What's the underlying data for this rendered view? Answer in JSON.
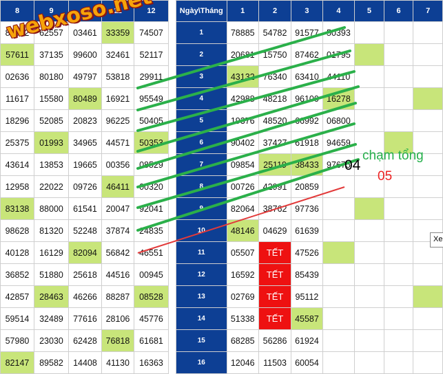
{
  "left_table": {
    "headers": [
      "8",
      "9",
      "10",
      "11",
      "12"
    ],
    "rows": [
      [
        {
          "v": "86012"
        },
        {
          "v": "62557"
        },
        {
          "v": "03461"
        },
        {
          "v": "33359",
          "hl": true
        },
        {
          "v": "74507"
        }
      ],
      [
        {
          "v": "57611",
          "hl": true
        },
        {
          "v": "37135"
        },
        {
          "v": "99600"
        },
        {
          "v": "32461"
        },
        {
          "v": "52117"
        }
      ],
      [
        {
          "v": "02636"
        },
        {
          "v": "80180"
        },
        {
          "v": "49797"
        },
        {
          "v": "53818"
        },
        {
          "v": "29911"
        }
      ],
      [
        {
          "v": "11617"
        },
        {
          "v": "15580"
        },
        {
          "v": "80489",
          "hl": true
        },
        {
          "v": "16921"
        },
        {
          "v": "95549"
        }
      ],
      [
        {
          "v": "18296"
        },
        {
          "v": "52085"
        },
        {
          "v": "20823"
        },
        {
          "v": "96225"
        },
        {
          "v": "50405"
        }
      ],
      [
        {
          "v": "25375"
        },
        {
          "v": "01993",
          "hl": true
        },
        {
          "v": "34965"
        },
        {
          "v": "44571"
        },
        {
          "v": "50353",
          "hl": true
        }
      ],
      [
        {
          "v": "43614"
        },
        {
          "v": "13853"
        },
        {
          "v": "19665"
        },
        {
          "v": "00356"
        },
        {
          "v": "08529"
        }
      ],
      [
        {
          "v": "12958"
        },
        {
          "v": "22022"
        },
        {
          "v": "09726"
        },
        {
          "v": "46411",
          "hl": true
        },
        {
          "v": "00320"
        }
      ],
      [
        {
          "v": "83138",
          "hl": true
        },
        {
          "v": "88000"
        },
        {
          "v": "61541"
        },
        {
          "v": "20047"
        },
        {
          "v": "92041"
        }
      ],
      [
        {
          "v": "98628"
        },
        {
          "v": "81320"
        },
        {
          "v": "52248"
        },
        {
          "v": "37874"
        },
        {
          "v": "24835"
        }
      ],
      [
        {
          "v": "40128"
        },
        {
          "v": "16129"
        },
        {
          "v": "82094",
          "hl": true
        },
        {
          "v": "56842"
        },
        {
          "v": "46551"
        }
      ],
      [
        {
          "v": "36852"
        },
        {
          "v": "51880"
        },
        {
          "v": "25618"
        },
        {
          "v": "44516"
        },
        {
          "v": "00945"
        }
      ],
      [
        {
          "v": "42857"
        },
        {
          "v": "28463",
          "hl": true
        },
        {
          "v": "46266"
        },
        {
          "v": "88287"
        },
        {
          "v": "08528",
          "hl": true
        }
      ],
      [
        {
          "v": "59514"
        },
        {
          "v": "32489"
        },
        {
          "v": "77616"
        },
        {
          "v": "28106"
        },
        {
          "v": "45776"
        }
      ],
      [
        {
          "v": "57980"
        },
        {
          "v": "23030"
        },
        {
          "v": "62428"
        },
        {
          "v": "76818",
          "hl": true
        },
        {
          "v": "61681"
        }
      ],
      [
        {
          "v": "82147",
          "hl": true
        },
        {
          "v": "89582"
        },
        {
          "v": "14408"
        },
        {
          "v": "41130"
        },
        {
          "v": "16363"
        }
      ]
    ]
  },
  "right_table": {
    "headers": [
      "Ngày\\Tháng",
      "1",
      "2",
      "3",
      "4",
      "5",
      "6",
      "7"
    ],
    "rows": [
      {
        "day": "1",
        "cells": [
          {
            "v": "78885"
          },
          {
            "v": "54782"
          },
          {
            "v": "91577"
          },
          {
            "v": "50393"
          },
          {
            "v": ""
          },
          {
            "v": ""
          },
          {
            "v": ""
          }
        ]
      },
      {
        "day": "2",
        "cells": [
          {
            "v": "20681"
          },
          {
            "v": "15750"
          },
          {
            "v": "87462"
          },
          {
            "v": "01795"
          },
          {
            "v": "",
            "hl": true
          },
          {
            "v": ""
          },
          {
            "v": ""
          }
        ]
      },
      {
        "day": "3",
        "cells": [
          {
            "v": "43132",
            "hl": true
          },
          {
            "v": "76340"
          },
          {
            "v": "63410"
          },
          {
            "v": "44110"
          },
          {
            "v": ""
          },
          {
            "v": ""
          },
          {
            "v": ""
          }
        ]
      },
      {
        "day": "4",
        "cells": [
          {
            "v": "42988"
          },
          {
            "v": "48218"
          },
          {
            "v": "96100"
          },
          {
            "v": "16278",
            "hl": true
          },
          {
            "v": ""
          },
          {
            "v": ""
          },
          {
            "v": "",
            "hl": true
          }
        ]
      },
      {
        "day": "5",
        "cells": [
          {
            "v": "19376"
          },
          {
            "v": "48520"
          },
          {
            "v": "66992"
          },
          {
            "v": "06800"
          },
          {
            "v": ""
          },
          {
            "v": ""
          },
          {
            "v": ""
          }
        ]
      },
      {
        "day": "6",
        "cells": [
          {
            "v": "90402"
          },
          {
            "v": "37427"
          },
          {
            "v": "61918"
          },
          {
            "v": "94659"
          },
          {
            "v": ""
          },
          {
            "v": "",
            "hl": true
          },
          {
            "v": ""
          }
        ]
      },
      {
        "day": "7",
        "cells": [
          {
            "v": "09854"
          },
          {
            "v": "25119",
            "hl": true
          },
          {
            "v": "38433",
            "hl": true
          },
          {
            "v": "97675"
          },
          {
            "v": ""
          },
          {
            "v": ""
          },
          {
            "v": ""
          }
        ]
      },
      {
        "day": "8",
        "cells": [
          {
            "v": "00726"
          },
          {
            "v": "42991"
          },
          {
            "v": "20859"
          },
          {
            "v": ""
          },
          {
            "v": ""
          },
          {
            "v": ""
          },
          {
            "v": ""
          }
        ]
      },
      {
        "day": "9",
        "cells": [
          {
            "v": "82064"
          },
          {
            "v": "38762"
          },
          {
            "v": "97736"
          },
          {
            "v": ""
          },
          {
            "v": "",
            "hl": true
          },
          {
            "v": ""
          },
          {
            "v": ""
          }
        ]
      },
      {
        "day": "10",
        "cells": [
          {
            "v": "48146",
            "hl": true
          },
          {
            "v": "04629"
          },
          {
            "v": "61639"
          },
          {
            "v": ""
          },
          {
            "v": ""
          },
          {
            "v": ""
          },
          {
            "v": ""
          }
        ]
      },
      {
        "day": "11",
        "cells": [
          {
            "v": "05507"
          },
          {
            "v": "TẾT",
            "tet": true
          },
          {
            "v": "47526"
          },
          {
            "v": "",
            "hl": true
          },
          {
            "v": ""
          },
          {
            "v": ""
          },
          {
            "v": ""
          }
        ]
      },
      {
        "day": "12",
        "cells": [
          {
            "v": "16592"
          },
          {
            "v": "TẾT",
            "tet": true
          },
          {
            "v": "85439"
          },
          {
            "v": ""
          },
          {
            "v": ""
          },
          {
            "v": ""
          },
          {
            "v": ""
          }
        ]
      },
      {
        "day": "13",
        "cells": [
          {
            "v": "02769"
          },
          {
            "v": "TẾT",
            "tet": true
          },
          {
            "v": "95112"
          },
          {
            "v": ""
          },
          {
            "v": ""
          },
          {
            "v": ""
          },
          {
            "v": "",
            "hl": true
          }
        ]
      },
      {
        "day": "14",
        "cells": [
          {
            "v": "51338"
          },
          {
            "v": "TẾT",
            "tet": true
          },
          {
            "v": "45587",
            "hl": true
          },
          {
            "v": ""
          },
          {
            "v": ""
          },
          {
            "v": ""
          },
          {
            "v": ""
          }
        ]
      },
      {
        "day": "15",
        "cells": [
          {
            "v": "68285"
          },
          {
            "v": "56286"
          },
          {
            "v": "61924"
          },
          {
            "v": ""
          },
          {
            "v": ""
          },
          {
            "v": ""
          },
          {
            "v": ""
          }
        ]
      },
      {
        "day": "16",
        "cells": [
          {
            "v": "12046"
          },
          {
            "v": "11503"
          },
          {
            "v": "60054"
          },
          {
            "v": ""
          },
          {
            "v": ""
          },
          {
            "v": ""
          },
          {
            "v": ""
          }
        ]
      }
    ]
  },
  "watermark": {
    "text": "webxoso.net"
  },
  "annotations": {
    "num04": "04",
    "num05": "05",
    "cham_tong": "chạm tổng"
  },
  "tooltip": {
    "text": "Xe"
  },
  "colors": {
    "header": "#0d3f94",
    "highlight": "#c8e57a",
    "tet": "#ee1111",
    "green_line": "#2bb04a",
    "red_line": "#e23a3a",
    "watermark": "#f6a30a"
  }
}
